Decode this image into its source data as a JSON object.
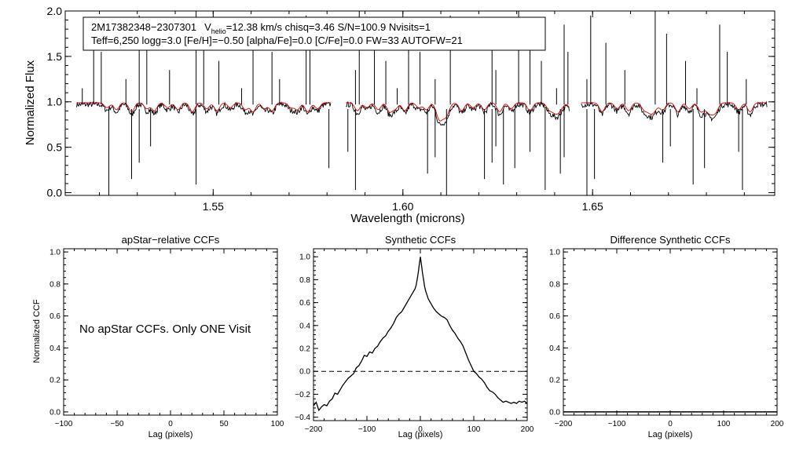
{
  "figure": {
    "header_line1": {
      "id": "2M17382348−2307301",
      "vhelio_prefix": "V",
      "vhelio_sub": "helio",
      "vhelio_rest": "=12.38 km/s  chisq=3.46  S/N=100.9  Nvisits=1"
    },
    "header_line2": "Teff=6,250 logg=3.0 [Fe/H]=−0.50 [alpha/Fe]=0.0 [C/Fe]=0.0 FW=33 AUTOFW=21",
    "no_ccf_message": "No apStar CCFs.  Only ONE Visit",
    "colors": {
      "observed": "#000000",
      "model": "#e00000"
    }
  },
  "chart_data": [
    {
      "type": "line",
      "title": "",
      "xlabel": "Wavelength (microns)",
      "ylabel": "Normalized Flux",
      "xlim": [
        1.511,
        1.698
      ],
      "ylim": [
        -0.03,
        2.0
      ],
      "xticks": [
        1.55,
        1.6,
        1.65
      ],
      "xtick_labels": [
        "1.55",
        "1.60",
        "1.65"
      ],
      "yticks": [
        0.0,
        0.5,
        1.0,
        1.5,
        2.0
      ],
      "ytick_labels": [
        "0.0",
        "0.5",
        "1.0",
        "1.5",
        "2.0"
      ],
      "chip_ranges": [
        [
          1.514,
          1.581
        ],
        [
          1.585,
          1.644
        ],
        [
          1.647,
          1.696
        ]
      ],
      "continuum_observed": 0.97,
      "continuum_model": 0.99,
      "absorption_features": [
        1.522,
        1.5245,
        1.5285,
        1.5325,
        1.5345,
        1.538,
        1.5407,
        1.5445,
        1.5483,
        1.551,
        1.5545,
        1.5585,
        1.5605,
        1.5635,
        1.5655,
        1.5705,
        1.5722,
        1.5749,
        1.5775,
        1.588,
        1.5905,
        1.5935,
        1.5965,
        1.598,
        1.6005,
        1.6042,
        1.6062,
        1.6095,
        1.6115,
        1.6155,
        1.6185,
        1.6215,
        1.6255,
        1.6285,
        1.6335,
        1.6385,
        1.6445,
        1.6525,
        1.6565,
        1.6595,
        1.6635,
        1.6685,
        1.6725,
        1.6755,
        1.6785,
        1.6825,
        1.6885,
        1.6915
      ],
      "strong_features": [
        1.6105,
        1.6405,
        1.6655,
        1.681
      ],
      "emission_spikes": [
        1.5155,
        1.5185,
        1.5205,
        1.527,
        1.5305,
        1.5325,
        1.5385,
        1.5455,
        1.5475,
        1.5515,
        1.5575,
        1.5605,
        1.5655,
        1.5675,
        1.5745,
        1.5755,
        1.5875,
        1.5885,
        1.5925,
        1.5955,
        1.5985,
        1.6015,
        1.6045,
        1.6085,
        1.6125,
        1.6235,
        1.6245,
        1.6305,
        1.6335,
        1.6365,
        1.6405,
        1.6425,
        1.6435,
        1.6485,
        1.6495,
        1.6535,
        1.6585,
        1.6665,
        1.6695,
        1.6745,
        1.6775,
        1.6835,
        1.6855,
        1.6905
      ],
      "deep_dropouts": [
        1.5225,
        1.5285,
        1.5305,
        1.5335,
        1.5455,
        1.5805,
        1.5855,
        1.5875,
        1.6065,
        1.6085,
        1.6115,
        1.6215,
        1.6235,
        1.6245,
        1.6265,
        1.6295,
        1.6335,
        1.6375,
        1.6415,
        1.6425,
        1.6485,
        1.6505,
        1.6685,
        1.6705,
        1.6765,
        1.6795,
        1.6885,
        1.6895
      ]
    },
    {
      "type": "line",
      "title": "apStar−relative CCFs",
      "xlabel": "Lag (pixels)",
      "ylabel": "Normalized CCF",
      "xlim": [
        -100,
        100
      ],
      "ylim": [
        -0.02,
        1.02
      ],
      "xticks": [
        -100,
        -50,
        0,
        50,
        100
      ],
      "xtick_labels": [
        "−100",
        "−50",
        "0",
        "50",
        "100"
      ],
      "yticks": [
        0.0,
        0.2,
        0.4,
        0.6,
        0.8,
        1.0
      ],
      "ytick_labels": [
        "0.0",
        "0.2",
        "0.4",
        "0.6",
        "0.8",
        "1.0"
      ],
      "series": []
    },
    {
      "type": "line",
      "title": "Synthetic CCFs",
      "xlabel": "Lag (pixels)",
      "ylabel": "",
      "xlim": [
        -200,
        200
      ],
      "ylim": [
        -0.43,
        1.07
      ],
      "xticks": [
        -200,
        -100,
        0,
        100,
        200
      ],
      "xtick_labels": [
        "−200",
        "−100",
        "0",
        "100",
        "200"
      ],
      "yticks": [
        -0.4,
        -0.2,
        0.0,
        0.2,
        0.4,
        0.6,
        0.8,
        1.0
      ],
      "ytick_labels": [
        "−0.4",
        "−0.2",
        "0.0",
        "0.2",
        "0.4",
        "0.6",
        "0.8",
        "1.0"
      ],
      "reference_line": {
        "y": 0.0,
        "style": "dashed"
      },
      "series": [
        {
          "name": "synthetic CCF",
          "x": [
            -200,
            -195,
            -190,
            -185,
            -180,
            -175,
            -170,
            -165,
            -160,
            -155,
            -150,
            -145,
            -140,
            -135,
            -130,
            -125,
            -120,
            -115,
            -110,
            -105,
            -100,
            -95,
            -90,
            -85,
            -80,
            -75,
            -70,
            -65,
            -60,
            -55,
            -50,
            -45,
            -40,
            -35,
            -30,
            -25,
            -20,
            -15,
            -10,
            -8,
            -6,
            -4,
            -2,
            0,
            2,
            4,
            6,
            8,
            10,
            15,
            20,
            25,
            30,
            35,
            40,
            45,
            50,
            55,
            60,
            65,
            70,
            75,
            80,
            85,
            90,
            95,
            100,
            105,
            110,
            115,
            120,
            125,
            130,
            135,
            140,
            145,
            150,
            155,
            160,
            165,
            170,
            175,
            180,
            185,
            190,
            195,
            200
          ],
          "values": [
            -0.3,
            -0.27,
            -0.34,
            -0.31,
            -0.29,
            -0.3,
            -0.26,
            -0.24,
            -0.19,
            -0.2,
            -0.16,
            -0.12,
            -0.09,
            -0.06,
            -0.04,
            -0.02,
            0.03,
            0.05,
            0.09,
            0.14,
            0.13,
            0.17,
            0.16,
            0.2,
            0.22,
            0.26,
            0.29,
            0.31,
            0.35,
            0.38,
            0.42,
            0.47,
            0.5,
            0.52,
            0.56,
            0.6,
            0.64,
            0.68,
            0.72,
            0.75,
            0.8,
            0.86,
            0.93,
            1.0,
            0.93,
            0.86,
            0.8,
            0.74,
            0.7,
            0.63,
            0.59,
            0.55,
            0.52,
            0.5,
            0.48,
            0.47,
            0.45,
            0.4,
            0.36,
            0.33,
            0.29,
            0.26,
            0.22,
            0.16,
            0.1,
            0.05,
            0.0,
            -0.02,
            -0.05,
            -0.07,
            -0.1,
            -0.14,
            -0.17,
            -0.18,
            -0.2,
            -0.23,
            -0.25,
            -0.27,
            -0.26,
            -0.27,
            -0.28,
            -0.27,
            -0.28,
            -0.26,
            -0.27,
            -0.26,
            -0.28
          ]
        }
      ]
    },
    {
      "type": "line",
      "title": "Difference Synthetic CCFs",
      "xlabel": "Lag (pixels)",
      "ylabel": "",
      "xlim": [
        -200,
        200
      ],
      "ylim": [
        -0.02,
        1.02
      ],
      "xticks": [
        -200,
        -100,
        0,
        100,
        200
      ],
      "xtick_labels": [
        "−200",
        "−100",
        "0",
        "100",
        "200"
      ],
      "yticks": [
        0.0,
        0.2,
        0.4,
        0.6,
        0.8,
        1.0
      ],
      "ytick_labels": [
        "0.0",
        "0.2",
        "0.4",
        "0.6",
        "0.8",
        "1.0"
      ],
      "series": [
        {
          "name": "difference",
          "x": [
            -200,
            200
          ],
          "values": [
            0.0,
            0.0
          ]
        }
      ]
    }
  ]
}
